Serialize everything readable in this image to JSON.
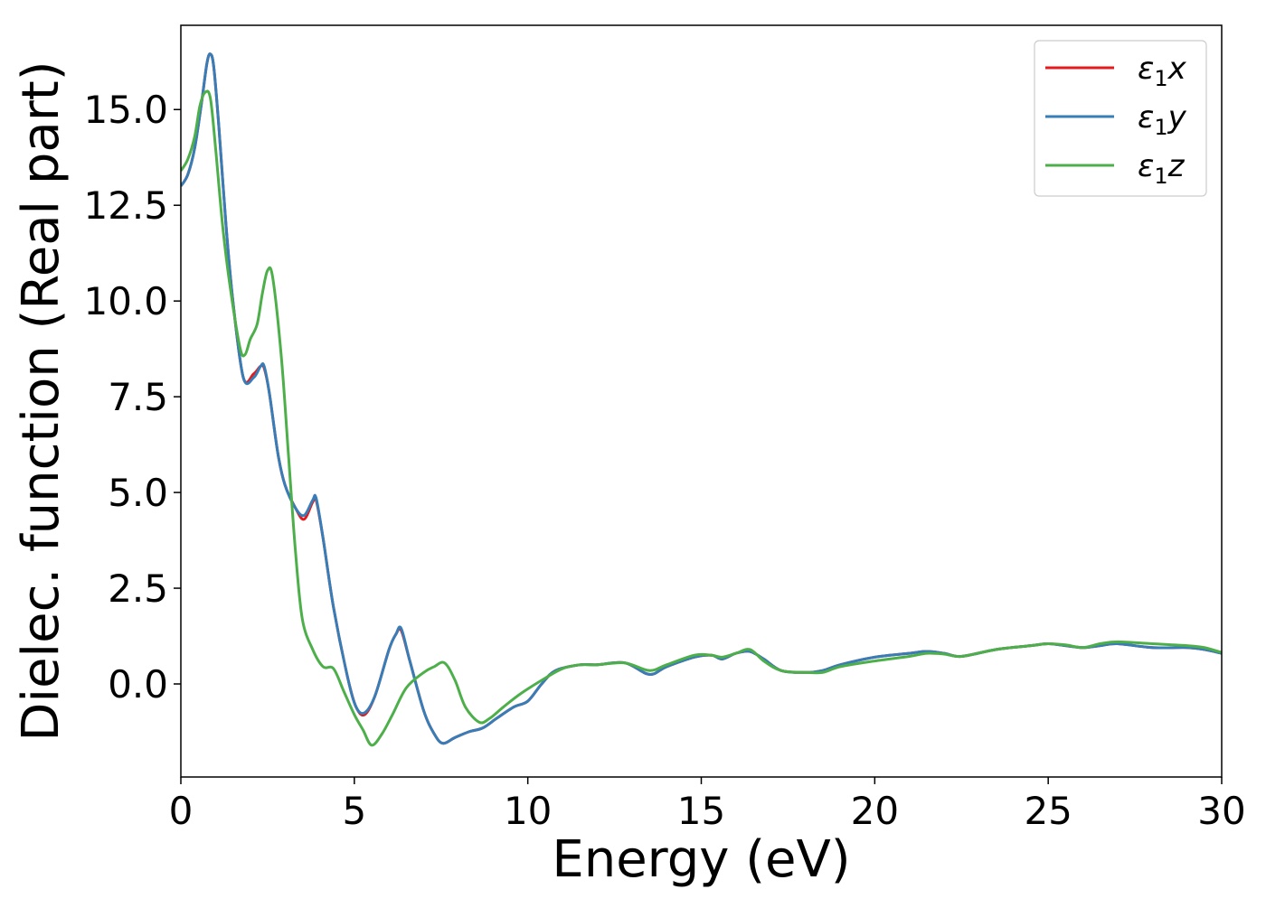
{
  "chart_data": {
    "type": "line",
    "title": "",
    "xlabel": "Energy (eV)",
    "ylabel": "Dielec. function (Real part)",
    "xlim": [
      0,
      30
    ],
    "ylim": [
      -2.43,
      17.2
    ],
    "xticks": [
      0,
      5,
      10,
      15,
      20,
      25,
      30
    ],
    "xtick_labels": [
      "0",
      "5",
      "10",
      "15",
      "20",
      "25",
      "30"
    ],
    "yticks": [
      0.0,
      2.5,
      5.0,
      7.5,
      10.0,
      12.5,
      15.0
    ],
    "ytick_labels": [
      "0.0",
      "2.5",
      "5.0",
      "7.5",
      "10.0",
      "12.5",
      "15.0"
    ],
    "grid": false,
    "legend_position": "top-right",
    "series": [
      {
        "name": "ε1x",
        "legend_main": "ε",
        "legend_sub": "1",
        "legend_var": "x",
        "color": "#e41a1c",
        "x": [
          0,
          0.2,
          0.4,
          0.6,
          0.75,
          0.85,
          0.95,
          1.1,
          1.3,
          1.5,
          1.8,
          2.1,
          2.3,
          2.4,
          2.55,
          2.8,
          3.0,
          3.3,
          3.55,
          3.8,
          3.9,
          4.1,
          4.4,
          4.8,
          5.05,
          5.3,
          5.6,
          6.0,
          6.2,
          6.35,
          6.6,
          7.0,
          7.3,
          7.55,
          7.9,
          8.3,
          8.7,
          9.1,
          9.6,
          10.0,
          10.4,
          10.8,
          11.5,
          12.0,
          12.8,
          13.5,
          14.0,
          14.8,
          15.3,
          15.6,
          16.0,
          16.4,
          16.8,
          17.3,
          18.0,
          18.5,
          19.0,
          20.0,
          21.0,
          21.5,
          22.0,
          22.5,
          23.5,
          24.5,
          25.0,
          25.5,
          26.0,
          26.5,
          27.0,
          28.0,
          29.0,
          29.5,
          30.0
        ],
        "y": [
          13.0,
          13.3,
          14.0,
          15.2,
          16.2,
          16.45,
          16.1,
          14.5,
          12.0,
          10.0,
          8.0,
          8.1,
          8.3,
          8.25,
          7.6,
          6.0,
          5.2,
          4.6,
          4.3,
          4.75,
          4.8,
          3.8,
          2.0,
          0.2,
          -0.6,
          -0.8,
          -0.3,
          0.9,
          1.3,
          1.4,
          0.6,
          -0.7,
          -1.3,
          -1.55,
          -1.4,
          -1.25,
          -1.15,
          -0.9,
          -0.6,
          -0.45,
          0.0,
          0.35,
          0.5,
          0.5,
          0.55,
          0.25,
          0.45,
          0.7,
          0.75,
          0.65,
          0.8,
          0.85,
          0.65,
          0.35,
          0.3,
          0.35,
          0.5,
          0.7,
          0.8,
          0.85,
          0.8,
          0.72,
          0.9,
          1.0,
          1.05,
          1.0,
          0.95,
          1.0,
          1.05,
          0.95,
          0.95,
          0.9,
          0.8
        ]
      },
      {
        "name": "ε1y",
        "legend_main": "ε",
        "legend_sub": "1",
        "legend_var": "y",
        "color": "#377eb8",
        "x": [
          0,
          0.2,
          0.4,
          0.6,
          0.75,
          0.85,
          0.95,
          1.1,
          1.3,
          1.5,
          1.8,
          2.1,
          2.3,
          2.4,
          2.55,
          2.8,
          3.0,
          3.3,
          3.55,
          3.8,
          3.9,
          4.1,
          4.4,
          4.8,
          5.05,
          5.3,
          5.6,
          6.0,
          6.2,
          6.35,
          6.6,
          7.0,
          7.3,
          7.55,
          7.9,
          8.3,
          8.7,
          9.1,
          9.6,
          10.0,
          10.4,
          10.8,
          11.5,
          12.0,
          12.8,
          13.5,
          14.0,
          14.8,
          15.3,
          15.6,
          16.0,
          16.4,
          16.8,
          17.3,
          18.0,
          18.5,
          19.0,
          20.0,
          21.0,
          21.5,
          22.0,
          22.5,
          23.5,
          24.5,
          25.0,
          25.5,
          26.0,
          26.5,
          27.0,
          28.0,
          29.0,
          29.5,
          30.0
        ],
        "y": [
          13.0,
          13.3,
          14.0,
          15.2,
          16.2,
          16.45,
          16.1,
          14.5,
          12.0,
          10.0,
          8.0,
          8.0,
          8.3,
          8.3,
          7.6,
          6.0,
          5.2,
          4.6,
          4.4,
          4.8,
          4.85,
          3.8,
          2.0,
          0.2,
          -0.6,
          -0.75,
          -0.3,
          0.9,
          1.3,
          1.45,
          0.6,
          -0.7,
          -1.3,
          -1.55,
          -1.4,
          -1.25,
          -1.15,
          -0.9,
          -0.6,
          -0.45,
          0.0,
          0.35,
          0.5,
          0.5,
          0.55,
          0.25,
          0.45,
          0.7,
          0.75,
          0.65,
          0.8,
          0.85,
          0.65,
          0.35,
          0.3,
          0.35,
          0.5,
          0.7,
          0.8,
          0.85,
          0.8,
          0.72,
          0.9,
          1.0,
          1.05,
          1.0,
          0.95,
          1.0,
          1.05,
          0.95,
          0.95,
          0.9,
          0.8
        ]
      },
      {
        "name": "ε1z",
        "legend_main": "ε",
        "legend_sub": "1",
        "legend_var": "z",
        "color": "#4daf4a",
        "x": [
          0,
          0.2,
          0.4,
          0.55,
          0.7,
          0.85,
          1.0,
          1.2,
          1.4,
          1.7,
          1.85,
          2.0,
          2.2,
          2.35,
          2.5,
          2.65,
          2.9,
          3.1,
          3.3,
          3.5,
          3.8,
          4.1,
          4.4,
          4.7,
          5.0,
          5.25,
          5.5,
          5.8,
          6.1,
          6.5,
          7.0,
          7.3,
          7.6,
          7.9,
          8.2,
          8.6,
          8.9,
          9.3,
          9.8,
          10.5,
          11.0,
          11.5,
          12.0,
          12.8,
          13.5,
          14.0,
          14.8,
          15.3,
          15.6,
          16.0,
          16.4,
          16.8,
          17.3,
          18.0,
          18.5,
          19.0,
          20.0,
          21.0,
          21.5,
          22.0,
          22.5,
          23.5,
          24.5,
          25.0,
          25.5,
          26.0,
          26.5,
          27.0,
          28.0,
          29.0,
          29.5,
          30.0
        ],
        "y": [
          13.4,
          13.7,
          14.3,
          15.1,
          15.45,
          15.3,
          14.0,
          12.0,
          10.5,
          8.8,
          8.6,
          9.0,
          9.4,
          10.2,
          10.8,
          10.6,
          8.5,
          6.0,
          3.5,
          1.7,
          0.9,
          0.45,
          0.4,
          -0.2,
          -0.8,
          -1.2,
          -1.6,
          -1.3,
          -0.8,
          -0.1,
          0.3,
          0.45,
          0.55,
          0.1,
          -0.6,
          -1.0,
          -0.9,
          -0.6,
          -0.25,
          0.15,
          0.4,
          0.5,
          0.5,
          0.55,
          0.35,
          0.5,
          0.75,
          0.75,
          0.7,
          0.8,
          0.9,
          0.6,
          0.35,
          0.3,
          0.3,
          0.45,
          0.6,
          0.72,
          0.8,
          0.78,
          0.72,
          0.9,
          1.0,
          1.05,
          1.02,
          0.95,
          1.05,
          1.1,
          1.05,
          1.0,
          0.95,
          0.82
        ]
      }
    ]
  }
}
